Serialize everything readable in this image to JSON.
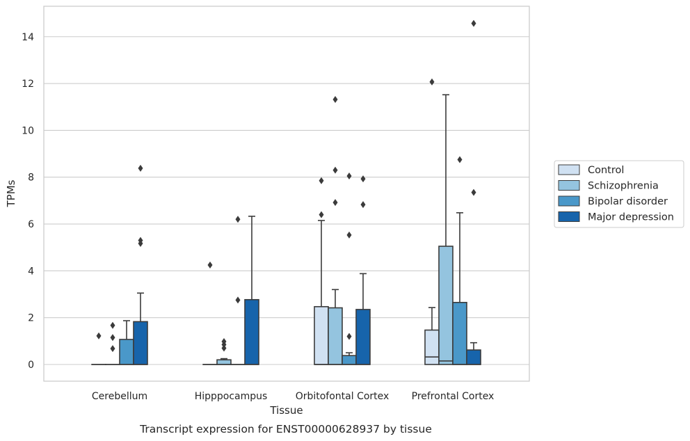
{
  "caption": "Transcript expression for ENST00000628937 by tissue",
  "chart_data": {
    "type": "box",
    "xlabel": "Tissue",
    "ylabel": "TPMs",
    "ylim": [
      -0.7,
      15.3
    ],
    "yticks": [
      0,
      2,
      4,
      6,
      8,
      10,
      12,
      14
    ],
    "grid": "horizontal",
    "legend_placement": "right",
    "categories": [
      "Cerebellum",
      "Hipppocampus",
      "Orbitofontal Cortex",
      "Prefrontal Cortex"
    ],
    "series": [
      {
        "name": "Control",
        "color": "#d0e1f2",
        "boxes": [
          {
            "q1": 0,
            "median": 0,
            "q3": 0,
            "whisker_low": 0,
            "whisker_high": 0,
            "outliers": [
              1.22
            ]
          },
          {
            "q1": 0,
            "median": 0,
            "q3": 0,
            "whisker_low": 0,
            "whisker_high": 0,
            "outliers": [
              4.25
            ]
          },
          {
            "q1": 0,
            "median": 0,
            "q3": 2.47,
            "whisker_low": 0,
            "whisker_high": 6.15,
            "outliers": [
              6.4,
              7.85
            ]
          },
          {
            "q1": 0,
            "median": 0.32,
            "q3": 1.47,
            "whisker_low": 0,
            "whisker_high": 2.43,
            "outliers": [
              12.07
            ]
          }
        ]
      },
      {
        "name": "Schizophrenia",
        "color": "#94c4df",
        "boxes": [
          {
            "q1": 0,
            "median": 0,
            "q3": 0,
            "whisker_low": 0,
            "whisker_high": 0,
            "outliers": [
              0.68,
              1.15,
              1.67
            ]
          },
          {
            "q1": 0,
            "median": 0,
            "q3": 0.2,
            "whisker_low": 0,
            "whisker_high": 0.25,
            "outliers": [
              0.7,
              0.85,
              0.98
            ]
          },
          {
            "q1": 0,
            "median": 0,
            "q3": 2.42,
            "whisker_low": 0,
            "whisker_high": 3.2,
            "outliers": [
              6.92,
              8.3,
              11.32
            ]
          },
          {
            "q1": 0,
            "median": 0.15,
            "q3": 5.05,
            "whisker_low": 0,
            "whisker_high": 11.52,
            "outliers": []
          }
        ]
      },
      {
        "name": "Bipolar disorder",
        "color": "#4a98c9",
        "boxes": [
          {
            "q1": 0,
            "median": 0,
            "q3": 1.07,
            "whisker_low": 0,
            "whisker_high": 1.87,
            "outliers": []
          },
          {
            "q1": 0,
            "median": 0,
            "q3": 0,
            "whisker_low": 0,
            "whisker_high": 0,
            "outliers": [
              2.75,
              6.2
            ]
          },
          {
            "q1": 0,
            "median": 0,
            "q3": 0.38,
            "whisker_low": 0,
            "whisker_high": 0.5,
            "outliers": [
              1.2,
              5.53,
              8.05
            ]
          },
          {
            "q1": 0,
            "median": 0,
            "q3": 2.65,
            "whisker_low": 0,
            "whisker_high": 6.48,
            "outliers": [
              8.75
            ]
          }
        ]
      },
      {
        "name": "Major depression",
        "color": "#1764ab",
        "boxes": [
          {
            "q1": 0,
            "median": 0,
            "q3": 1.83,
            "whisker_low": 0,
            "whisker_high": 3.05,
            "outliers": [
              5.17,
              5.3,
              8.38
            ]
          },
          {
            "q1": 0,
            "median": 0,
            "q3": 2.77,
            "whisker_low": 0,
            "whisker_high": 6.33,
            "outliers": []
          },
          {
            "q1": 0,
            "median": 0,
            "q3": 2.35,
            "whisker_low": 0,
            "whisker_high": 3.88,
            "outliers": [
              6.83,
              7.93
            ]
          },
          {
            "q1": 0,
            "median": 0,
            "q3": 0.62,
            "whisker_low": 0,
            "whisker_high": 0.93,
            "outliers": [
              7.35,
              14.57
            ]
          }
        ]
      }
    ]
  }
}
